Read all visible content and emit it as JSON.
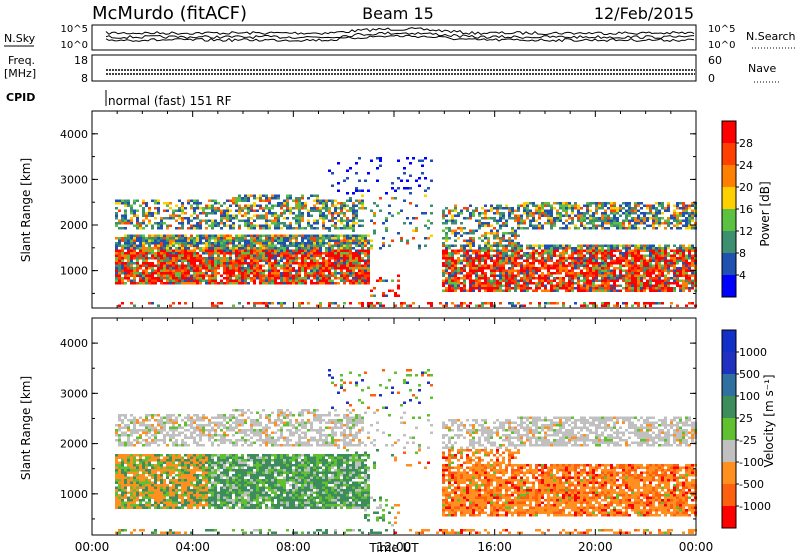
{
  "header": {
    "station": "McMurdo (fitACF)",
    "beam": "Beam 15",
    "date": "12/Feb/2015"
  },
  "noise_panel": {
    "left_label": "N.Sky",
    "right_label": "N.Search",
    "left_ticks": [
      "10^5",
      "10^0"
    ],
    "right_ticks": [
      "10^5",
      "10^0"
    ]
  },
  "freq_panel": {
    "left_label_1": "Freq.",
    "left_label_2": "[MHz]",
    "right_label": "Nave",
    "left_ticks": [
      "18",
      "8"
    ],
    "right_ticks": [
      "60",
      "0"
    ]
  },
  "cpid": {
    "label": "CPID",
    "text": "normal (fast) 151 RF"
  },
  "colors": {
    "power_scale": [
      "#0000ff",
      "#2050b0",
      "#3c9070",
      "#5cc040",
      "#ffd000",
      "#ff8000",
      "#ff4000",
      "#ff0000"
    ],
    "velocity_scale": [
      "#2030c0",
      "#3070a0",
      "#3c8c5c",
      "#60c030",
      "#c0c0c0",
      "#ff9020",
      "#ff6010",
      "#ff0000"
    ]
  },
  "chart_data": [
    {
      "type": "heatmap",
      "panel": "power",
      "ylabel": "Slant Range [km]",
      "ylim": [
        180,
        4500
      ],
      "y_ticks": [
        "1000",
        "2000",
        "3000",
        "4000"
      ],
      "xlim": [
        0,
        24
      ],
      "colorbar_label": "Power [dB]",
      "colorbar_ticks": [
        "4",
        "8",
        "12",
        "16",
        "20",
        "24",
        "28"
      ],
      "colorbar_range": [
        0,
        32
      ]
    },
    {
      "type": "heatmap",
      "panel": "velocity",
      "ylabel": "Slant Range [km]",
      "ylim": [
        180,
        4500
      ],
      "y_ticks": [
        "1000",
        "2000",
        "3000",
        "4000"
      ],
      "xlim": [
        0,
        24
      ],
      "xlabel": "Time UT",
      "x_ticks": [
        "00:00",
        "04:00",
        "08:00",
        "12:00",
        "16:00",
        "20:00",
        "00:00"
      ],
      "colorbar_label": "Velocity [m s⁻¹]",
      "colorbar_ticks": [
        "1000",
        "500",
        "100",
        "25",
        "-25",
        "-100",
        "-500",
        "-1000"
      ]
    }
  ]
}
